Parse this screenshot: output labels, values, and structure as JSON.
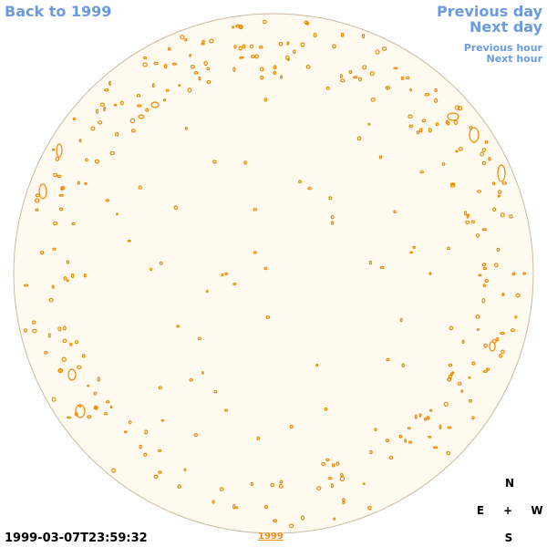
{
  "nav": {
    "back_label": "Back to 1999",
    "previous_day": "Previous day",
    "next_day": "Next day",
    "previous_hour": "Previous hour",
    "next_hour": "Next hour"
  },
  "footer": {
    "timestamp": "1999-03-07T23:59:32",
    "year_link": "1999"
  },
  "compass": {
    "north": "N",
    "east": "E",
    "center": "+",
    "west": "W",
    "south": "S"
  },
  "colors": {
    "disk_fill": "#fffaef",
    "disk_edge": "#c9bba0",
    "contour": "#ee8a00",
    "link": "#6a9be0"
  }
}
